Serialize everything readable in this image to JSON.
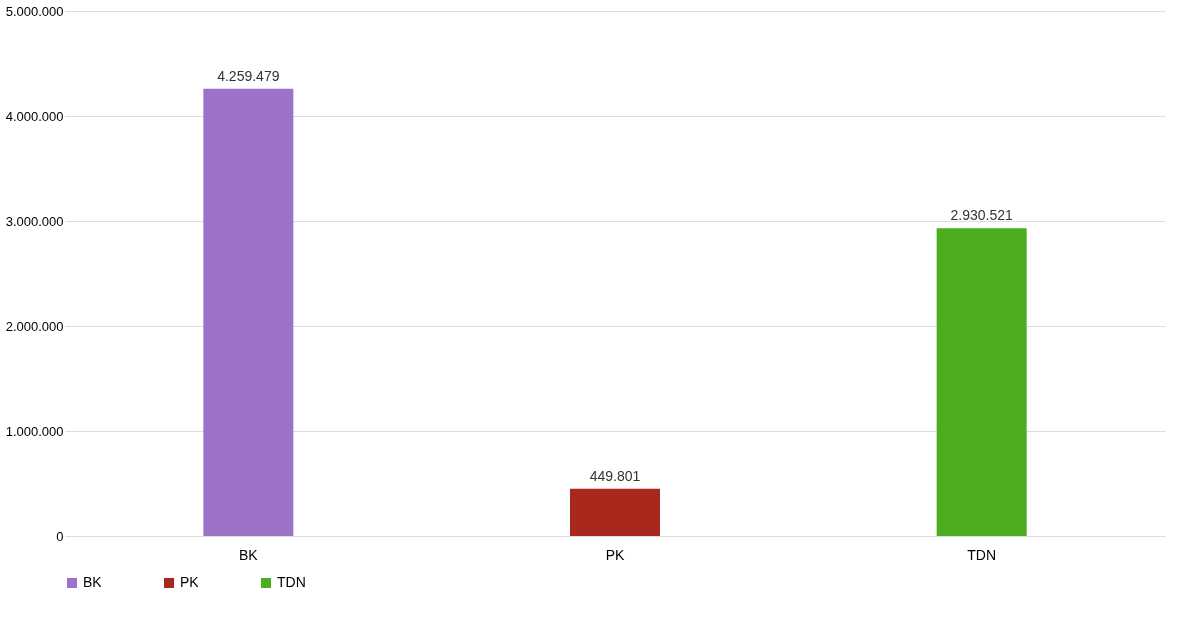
{
  "chart_data": {
    "type": "bar",
    "categories": [
      "BK",
      "PK",
      "TDN"
    ],
    "series": [
      {
        "name": "BK",
        "color": "#9b72c8",
        "values": [
          4259479,
          null,
          null
        ],
        "value_labels": [
          "4.259.479",
          null,
          null
        ]
      },
      {
        "name": "PK",
        "color": "#a8281e",
        "values": [
          null,
          449801,
          null
        ],
        "value_labels": [
          null,
          "449.801",
          null
        ]
      },
      {
        "name": "TDN",
        "color": "#4cae1e",
        "values": [
          null,
          null,
          2930521
        ],
        "value_labels": [
          null,
          null,
          "2.930.521"
        ]
      }
    ],
    "ylim": [
      0,
      5000000
    ],
    "yticks": [
      {
        "value": 0,
        "label": "0"
      },
      {
        "value": 1000000,
        "label": "1.000.000"
      },
      {
        "value": 2000000,
        "label": "2.000.000"
      },
      {
        "value": 3000000,
        "label": "3.000.000"
      },
      {
        "value": 4000000,
        "label": "4.000.000"
      },
      {
        "value": 5000000,
        "label": "5.000.000"
      }
    ],
    "grid": "y",
    "legend": "bottom"
  }
}
